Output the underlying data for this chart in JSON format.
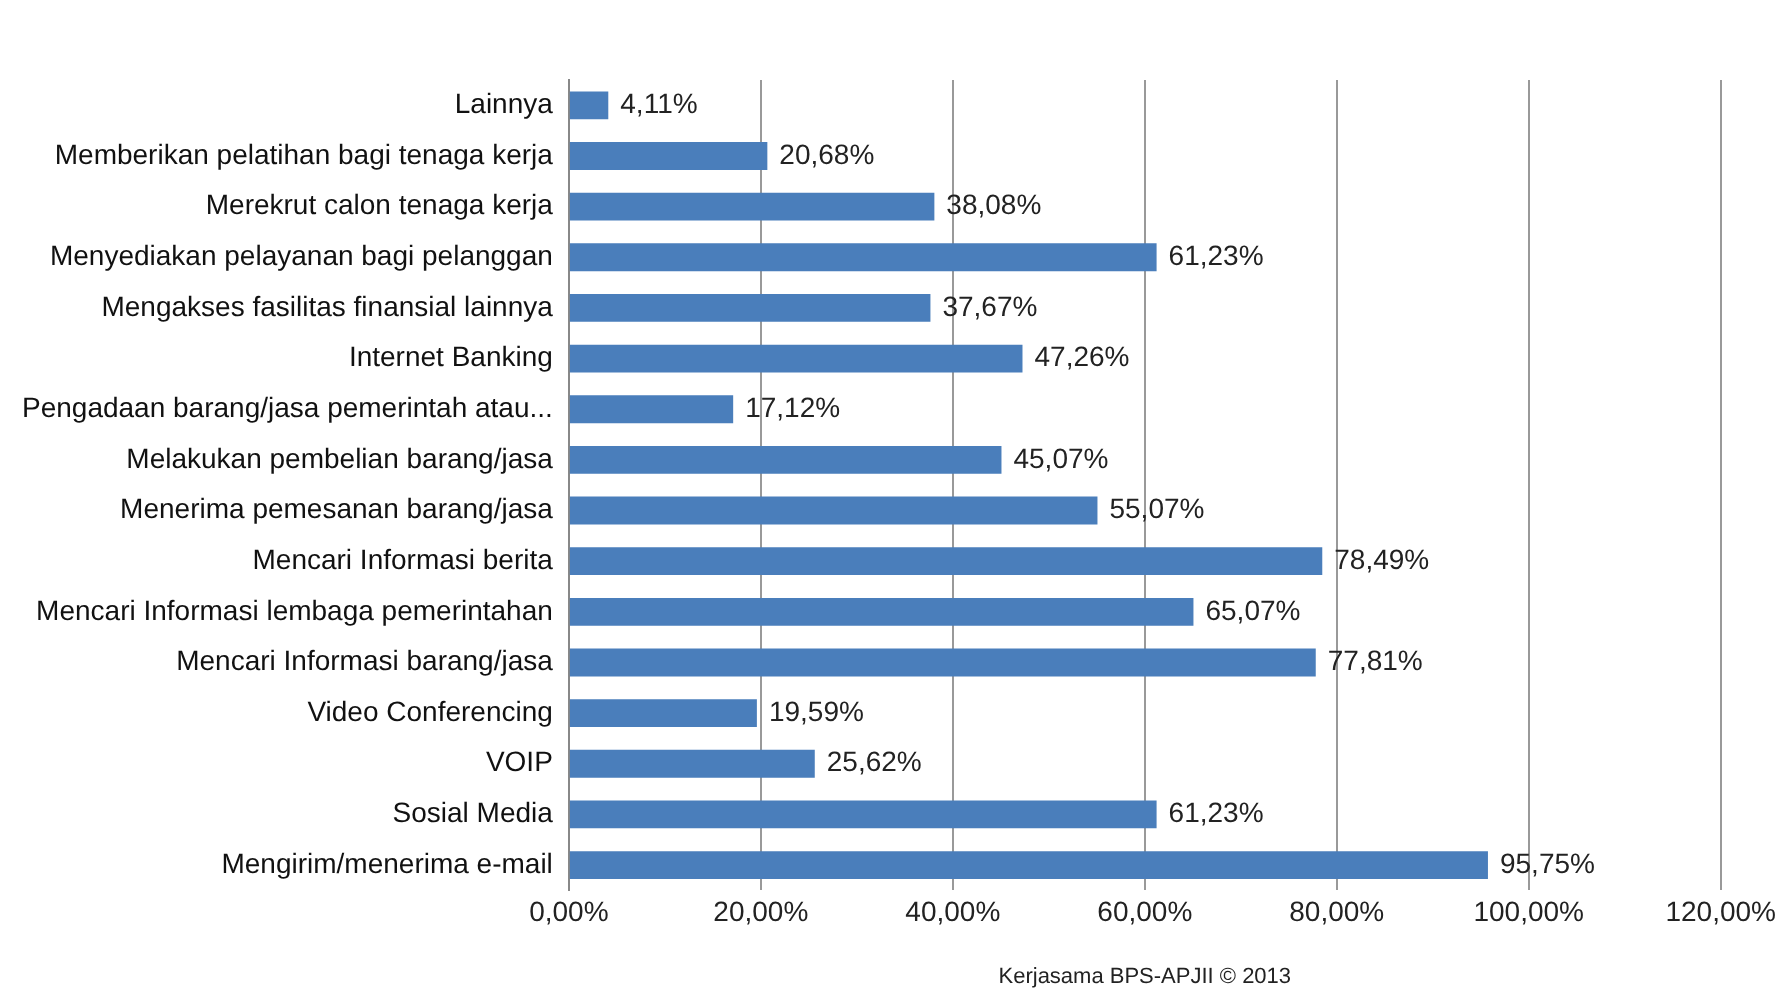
{
  "chart_data": {
    "type": "bar",
    "orientation": "horizontal",
    "categories": [
      "Lainnya",
      "Memberikan pelatihan bagi tenaga kerja",
      "Merekrut calon tenaga kerja",
      "Menyediakan pelayanan bagi pelanggan",
      "Mengakses fasilitas finansial lainnya",
      "Internet Banking",
      "Pengadaan barang/jasa pemerintah atau...",
      "Melakukan pembelian barang/jasa",
      "Menerima pemesanan barang/jasa",
      "Mencari Informasi berita",
      "Mencari Informasi lembaga pemerintahan",
      "Mencari Informasi barang/jasa",
      "Video Conferencing",
      "VOIP",
      "Sosial Media",
      "Mengirim/menerima e-mail"
    ],
    "values": [
      4.11,
      20.68,
      38.08,
      61.23,
      37.67,
      47.26,
      17.12,
      45.07,
      55.07,
      78.49,
      65.07,
      77.81,
      19.59,
      25.62,
      61.23,
      95.75
    ],
    "value_labels": [
      "4,11%",
      "20,68%",
      "38,08%",
      "61,23%",
      "37,67%",
      "47,26%",
      "17,12%",
      "45,07%",
      "55,07%",
      "78,49%",
      "65,07%",
      "77,81%",
      "19,59%",
      "25,62%",
      "61,23%",
      "95,75%"
    ],
    "color": "#4a7ebb",
    "xlim": [
      0,
      120
    ],
    "xticks": [
      {
        "value": 0,
        "label": "0,00%"
      },
      {
        "value": 20,
        "label": "20,00%"
      },
      {
        "value": 40,
        "label": "40,00%"
      },
      {
        "value": 60,
        "label": "60,00%"
      },
      {
        "value": 80,
        "label": "80,00%"
      },
      {
        "value": 100,
        "label": "100,00%"
      },
      {
        "value": 120,
        "label": "120,00%"
      }
    ],
    "grid": "x",
    "legend": false,
    "annotations": [
      "Kerjasama BPS-APJII © 2013"
    ]
  }
}
